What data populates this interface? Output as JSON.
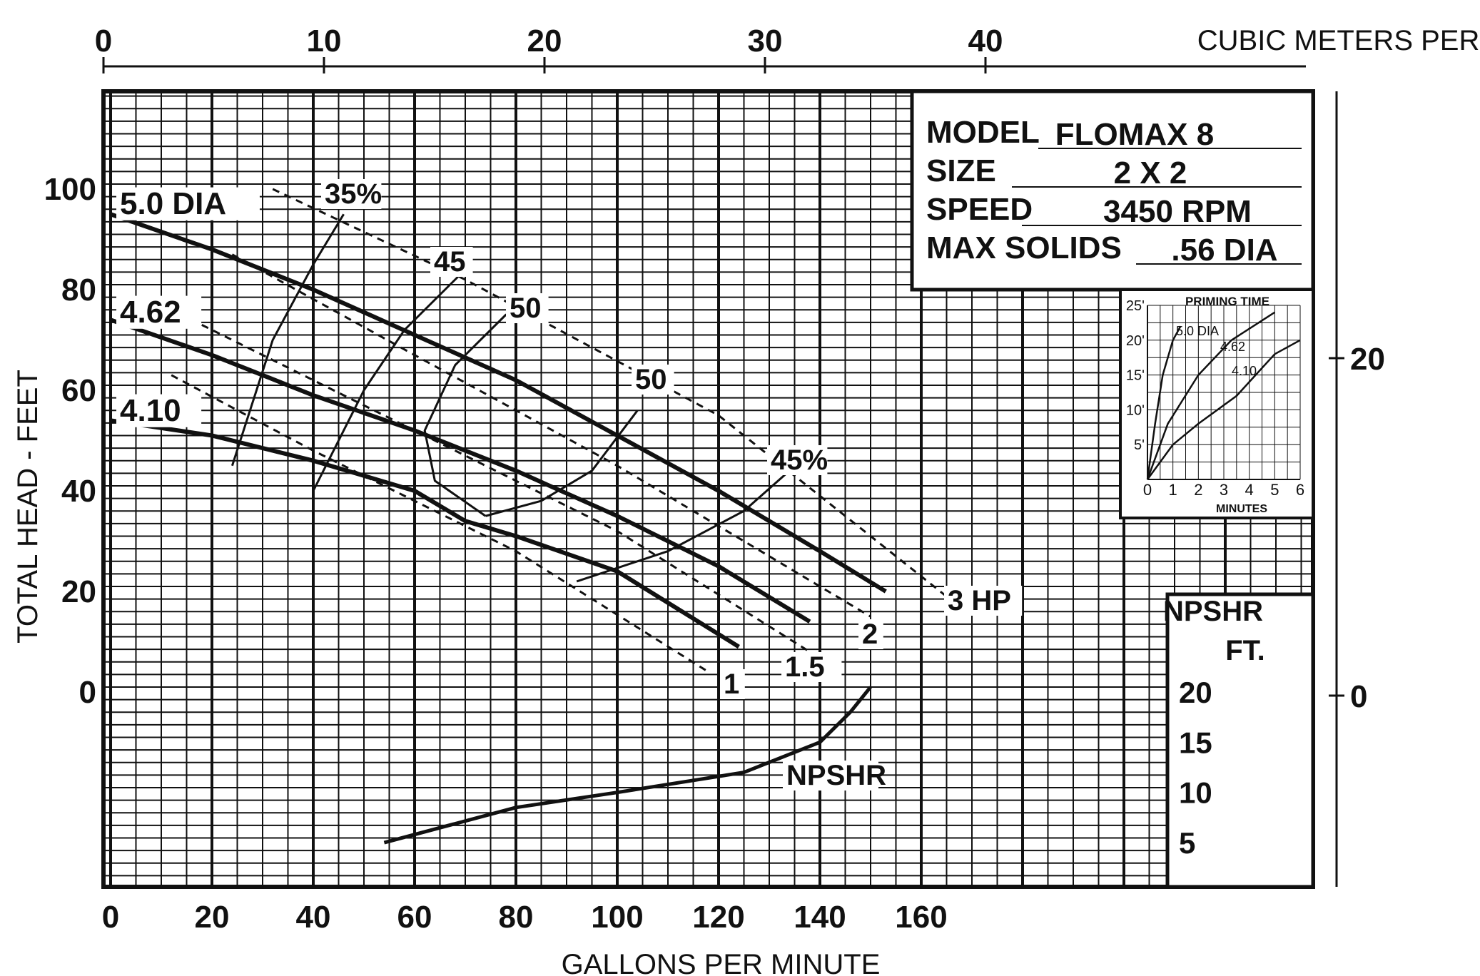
{
  "chart_data": {
    "type": "line",
    "title": "",
    "xlabel": "GALLONS PER MINUTE",
    "ylabel": "TOTAL HEAD - FEET",
    "x_top_label": "CUBIC METERS PER HOUR",
    "xlim": [
      0,
      240
    ],
    "ylim": [
      -39,
      120
    ],
    "grid": true,
    "x_ticks": [
      0,
      20,
      40,
      60,
      80,
      100,
      120,
      140,
      160
    ],
    "y_ticks": [
      0,
      20,
      40,
      60,
      80,
      100
    ],
    "top_ticks": [
      0,
      10,
      20,
      30,
      40
    ],
    "right_ticks": [
      0,
      20
    ],
    "npshr_ticks": [
      20,
      15,
      10,
      5
    ],
    "info": {
      "model_label": "MODEL",
      "model_value": "FLOMAX 8",
      "size_label": "SIZE",
      "size_value": "2 X 2",
      "speed_label": "SPEED",
      "speed_value": "3450 RPM",
      "solids_label": "MAX SOLIDS",
      "solids_value": ".56 DIA"
    },
    "npshr_axis_title_1": "NPSHR",
    "npshr_axis_title_2": "FT.",
    "series": [
      {
        "name": "5.0 DIA",
        "points": [
          [
            0,
            95
          ],
          [
            20,
            88
          ],
          [
            40,
            80
          ],
          [
            60,
            71
          ],
          [
            80,
            62
          ],
          [
            100,
            51
          ],
          [
            120,
            40
          ],
          [
            140,
            28
          ],
          [
            153,
            20
          ]
        ]
      },
      {
        "name": "4.62",
        "points": [
          [
            0,
            74
          ],
          [
            20,
            67
          ],
          [
            40,
            59
          ],
          [
            60,
            52
          ],
          [
            80,
            44
          ],
          [
            100,
            35
          ],
          [
            120,
            25
          ],
          [
            138,
            14
          ]
        ]
      },
      {
        "name": "4.10",
        "points": [
          [
            0,
            54
          ],
          [
            20,
            51
          ],
          [
            40,
            46
          ],
          [
            60,
            40
          ],
          [
            70,
            34
          ],
          [
            80,
            31
          ],
          [
            100,
            24
          ],
          [
            124,
            9
          ]
        ]
      }
    ],
    "hp_lines": [
      {
        "name": "1",
        "points": [
          [
            12,
            63
          ],
          [
            40,
            48
          ],
          [
            80,
            28
          ],
          [
            118,
            4
          ]
        ]
      },
      {
        "name": "1.5",
        "points": [
          [
            18,
            73
          ],
          [
            60,
            52
          ],
          [
            100,
            32
          ],
          [
            138,
            8
          ]
        ]
      },
      {
        "name": "2",
        "points": [
          [
            24,
            87
          ],
          [
            60,
            67
          ],
          [
            100,
            45
          ],
          [
            150,
            15
          ]
        ]
      },
      {
        "name": "3 HP",
        "points": [
          [
            32,
            100
          ],
          [
            70,
            82
          ],
          [
            120,
            55
          ],
          [
            165,
            19
          ]
        ]
      }
    ],
    "efficiency_curves": [
      {
        "name": "35%",
        "points": [
          [
            24,
            45
          ],
          [
            32,
            70
          ],
          [
            40,
            85
          ],
          [
            46,
            95
          ]
        ]
      },
      {
        "name": "45",
        "points": [
          [
            40,
            40
          ],
          [
            50,
            60
          ],
          [
            58,
            72
          ],
          [
            70,
            84
          ]
        ]
      },
      {
        "name": "50",
        "points": [
          [
            74,
            35
          ],
          [
            64,
            42
          ],
          [
            62,
            52
          ],
          [
            68,
            65
          ],
          [
            78,
            75
          ],
          [
            85,
            78
          ]
        ]
      },
      {
        "name": "50",
        "points": [
          [
            74,
            35
          ],
          [
            85,
            38
          ],
          [
            95,
            44
          ],
          [
            104,
            56
          ]
        ]
      },
      {
        "name": "45%",
        "points": [
          [
            92,
            22
          ],
          [
            110,
            28
          ],
          [
            125,
            36
          ],
          [
            134,
            44
          ]
        ]
      }
    ],
    "npshr_curve": {
      "name": "NPSHR",
      "npshr_points": [
        [
          54,
          5
        ],
        [
          80,
          8.5
        ],
        [
          100,
          10
        ],
        [
          125,
          12
        ],
        [
          140,
          15
        ],
        [
          146,
          18
        ],
        [
          150,
          20.5
        ]
      ]
    },
    "priming_inset": {
      "title": "PRIMING TIME",
      "xlabel": "MINUTES",
      "x_ticks": [
        0,
        1,
        2,
        3,
        4,
        5,
        6
      ],
      "y_tick_labels": [
        "5'",
        "10'",
        "15'",
        "20'",
        "25'"
      ],
      "series": [
        {
          "name": "5.0 DIA",
          "points": [
            [
              0,
              0
            ],
            [
              0.3,
              8
            ],
            [
              0.6,
              15
            ],
            [
              1,
              20
            ],
            [
              1.3,
              22
            ]
          ]
        },
        {
          "name": "4.62",
          "points": [
            [
              0,
              0
            ],
            [
              0.8,
              8
            ],
            [
              2,
              15
            ],
            [
              3.3,
              20
            ],
            [
              5,
              24
            ]
          ]
        },
        {
          "name": "4.10",
          "points": [
            [
              0,
              0
            ],
            [
              1,
              5
            ],
            [
              2,
              8
            ],
            [
              3.5,
              12
            ],
            [
              5,
              18
            ],
            [
              6,
              20
            ]
          ]
        }
      ]
    }
  }
}
